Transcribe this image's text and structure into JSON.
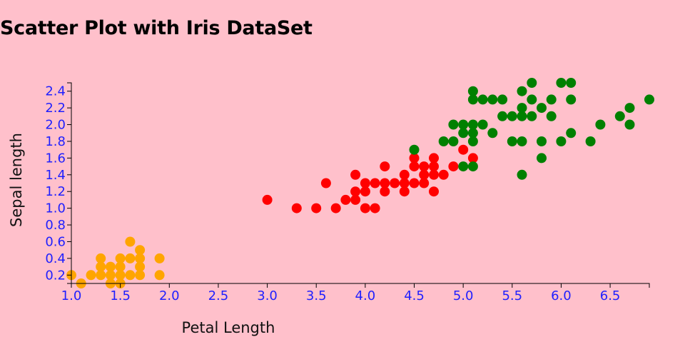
{
  "chart_data": {
    "type": "scatter",
    "title": "Scatter Plot with Iris DataSet",
    "xlabel": "Petal Length",
    "ylabel": "Sepal length",
    "xlim": [
      1.0,
      6.9
    ],
    "ylim": [
      0.1,
      2.5
    ],
    "x_ticks": [
      "1.0",
      "1.5",
      "2.0",
      "2.5",
      "3.0",
      "3.5",
      "4.0",
      "4.5",
      "5.0",
      "5.5",
      "6.0",
      "6.5"
    ],
    "y_ticks": [
      "0.2",
      "0.4",
      "0.6",
      "0.8",
      "1.0",
      "1.2",
      "1.4",
      "1.6",
      "1.8",
      "2.0",
      "2.2",
      "2.4"
    ],
    "grid": false,
    "legend": "none",
    "series": [
      {
        "color": "#ffa500",
        "points": [
          [
            1.0,
            0.2
          ],
          [
            1.1,
            0.1
          ],
          [
            1.2,
            0.2
          ],
          [
            1.3,
            0.2
          ],
          [
            1.3,
            0.3
          ],
          [
            1.3,
            0.4
          ],
          [
            1.4,
            0.1
          ],
          [
            1.4,
            0.2
          ],
          [
            1.4,
            0.3
          ],
          [
            1.5,
            0.1
          ],
          [
            1.5,
            0.2
          ],
          [
            1.5,
            0.3
          ],
          [
            1.5,
            0.4
          ],
          [
            1.6,
            0.2
          ],
          [
            1.6,
            0.4
          ],
          [
            1.6,
            0.6
          ],
          [
            1.7,
            0.2
          ],
          [
            1.7,
            0.3
          ],
          [
            1.7,
            0.4
          ],
          [
            1.7,
            0.5
          ],
          [
            1.9,
            0.2
          ],
          [
            1.9,
            0.4
          ]
        ]
      },
      {
        "color": "#ff0000",
        "points": [
          [
            3.0,
            1.1
          ],
          [
            3.3,
            1.0
          ],
          [
            3.5,
            1.0
          ],
          [
            3.6,
            1.3
          ],
          [
            3.7,
            1.0
          ],
          [
            3.8,
            1.1
          ],
          [
            3.9,
            1.1
          ],
          [
            3.9,
            1.2
          ],
          [
            3.9,
            1.4
          ],
          [
            4.0,
            1.0
          ],
          [
            4.0,
            1.2
          ],
          [
            4.0,
            1.3
          ],
          [
            4.1,
            1.0
          ],
          [
            4.1,
            1.3
          ],
          [
            4.2,
            1.2
          ],
          [
            4.2,
            1.3
          ],
          [
            4.2,
            1.5
          ],
          [
            4.3,
            1.3
          ],
          [
            4.4,
            1.2
          ],
          [
            4.4,
            1.3
          ],
          [
            4.4,
            1.4
          ],
          [
            4.5,
            1.3
          ],
          [
            4.5,
            1.5
          ],
          [
            4.5,
            1.6
          ],
          [
            4.6,
            1.3
          ],
          [
            4.6,
            1.4
          ],
          [
            4.6,
            1.5
          ],
          [
            4.7,
            1.2
          ],
          [
            4.7,
            1.4
          ],
          [
            4.7,
            1.5
          ],
          [
            4.7,
            1.6
          ],
          [
            4.8,
            1.4
          ],
          [
            4.9,
            1.5
          ],
          [
            5.0,
            1.7
          ],
          [
            5.1,
            1.6
          ]
        ]
      },
      {
        "color": "#008000",
        "points": [
          [
            4.5,
            1.7
          ],
          [
            4.8,
            1.8
          ],
          [
            4.9,
            1.8
          ],
          [
            4.9,
            2.0
          ],
          [
            5.0,
            1.5
          ],
          [
            5.0,
            1.9
          ],
          [
            5.0,
            2.0
          ],
          [
            5.1,
            1.5
          ],
          [
            5.1,
            1.8
          ],
          [
            5.1,
            1.9
          ],
          [
            5.1,
            2.0
          ],
          [
            5.1,
            2.3
          ],
          [
            5.1,
            2.4
          ],
          [
            5.2,
            2.0
          ],
          [
            5.2,
            2.3
          ],
          [
            5.3,
            1.9
          ],
          [
            5.3,
            2.3
          ],
          [
            5.4,
            2.1
          ],
          [
            5.4,
            2.3
          ],
          [
            5.5,
            1.8
          ],
          [
            5.5,
            2.1
          ],
          [
            5.6,
            1.4
          ],
          [
            5.6,
            1.8
          ],
          [
            5.6,
            2.1
          ],
          [
            5.6,
            2.2
          ],
          [
            5.6,
            2.4
          ],
          [
            5.7,
            2.1
          ],
          [
            5.7,
            2.3
          ],
          [
            5.7,
            2.5
          ],
          [
            5.8,
            1.6
          ],
          [
            5.8,
            1.8
          ],
          [
            5.8,
            2.2
          ],
          [
            5.9,
            2.1
          ],
          [
            5.9,
            2.3
          ],
          [
            6.0,
            1.8
          ],
          [
            6.0,
            2.5
          ],
          [
            6.1,
            1.9
          ],
          [
            6.1,
            2.3
          ],
          [
            6.1,
            2.5
          ],
          [
            6.3,
            1.8
          ],
          [
            6.4,
            2.0
          ],
          [
            6.6,
            2.1
          ],
          [
            6.7,
            2.0
          ],
          [
            6.7,
            2.2
          ],
          [
            6.9,
            2.3
          ]
        ]
      }
    ]
  }
}
